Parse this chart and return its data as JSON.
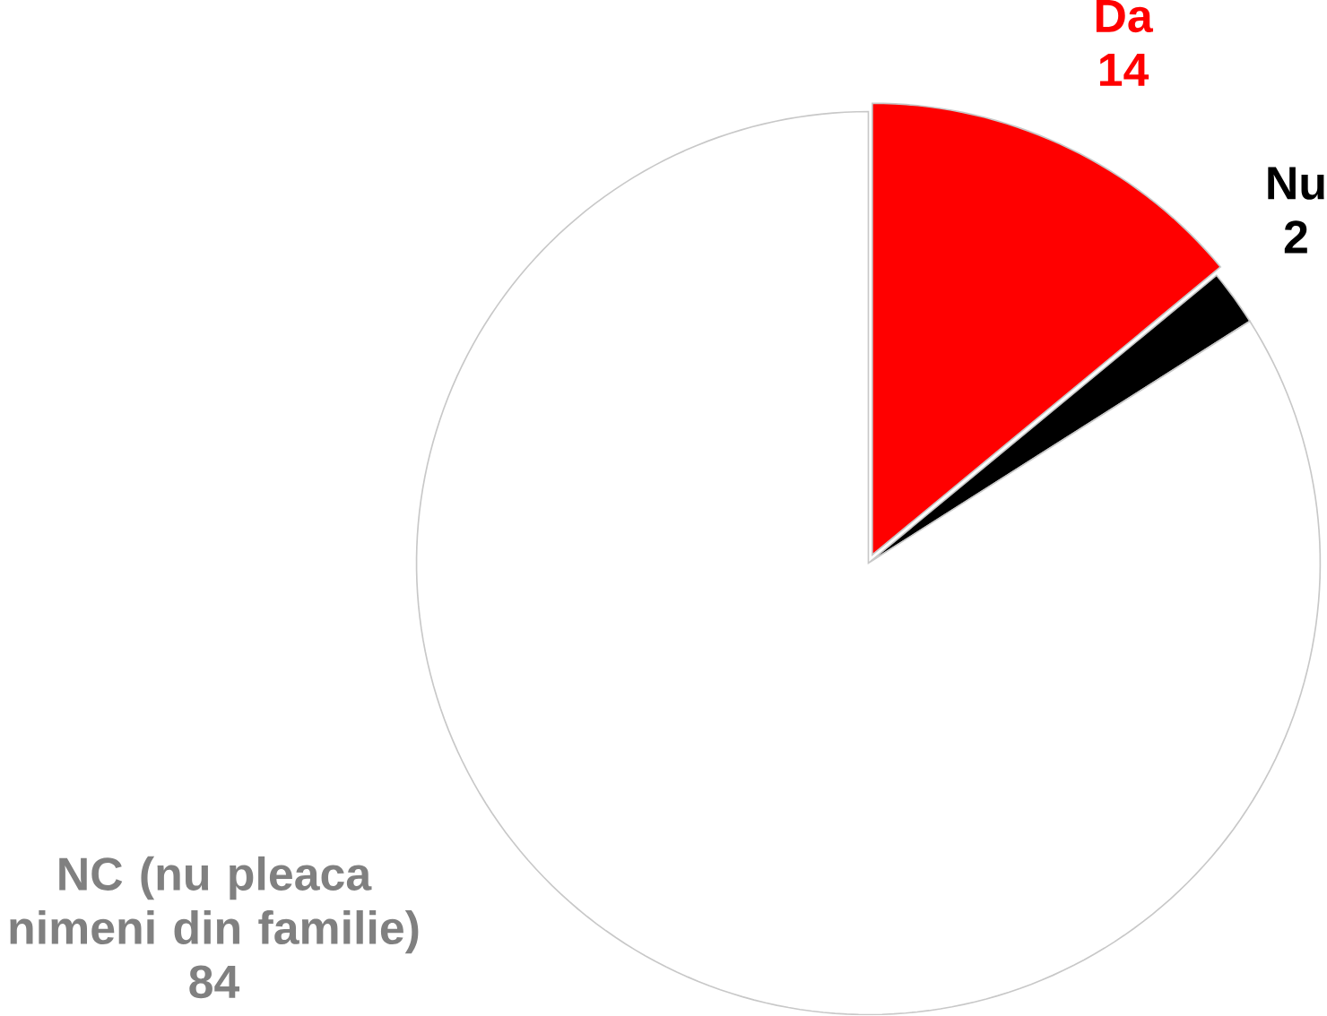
{
  "chart_data": {
    "type": "pie",
    "categories": [
      "Da",
      "Nu",
      "NC (nu pleaca nimeni din familie)"
    ],
    "values": [
      14,
      2,
      84
    ],
    "colors": [
      "#ff0000",
      "#000000",
      "#ffffff"
    ],
    "data_labels": true
  }
}
